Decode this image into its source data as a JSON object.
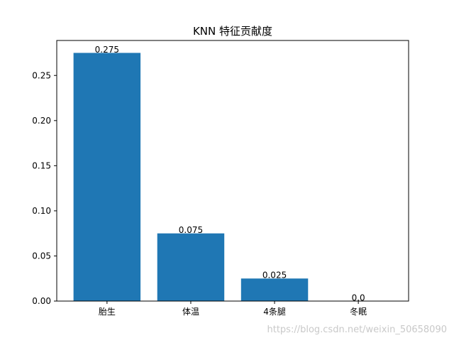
{
  "chart_data": {
    "type": "bar",
    "title": "KNN 特征贡献度",
    "categories": [
      "胎生",
      "体温",
      "4条腿",
      "冬眠"
    ],
    "values": [
      0.275,
      0.075,
      0.025,
      0.0
    ],
    "data_labels": [
      "0.275",
      "0.075",
      "0.025",
      "0.0"
    ],
    "xlabel": "",
    "ylabel": "",
    "ylim": [
      0,
      0.28875
    ],
    "yticks": [
      0.0,
      0.05,
      0.1,
      0.15,
      0.2,
      0.25
    ],
    "ytick_labels": [
      "0.00",
      "0.05",
      "0.10",
      "0.15",
      "0.20",
      "0.25"
    ],
    "bar_color": "#1f77b4",
    "grid": false,
    "legend": "none"
  },
  "watermark": "https://blog.csdn.net/weixin_50658090"
}
